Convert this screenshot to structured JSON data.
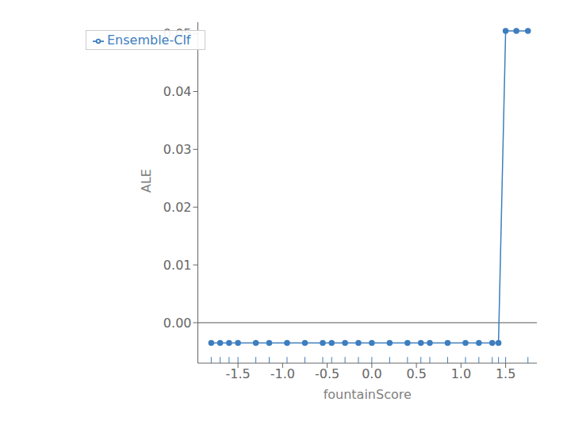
{
  "chart_data": {
    "type": "line",
    "xlabel": "fountainScore",
    "ylabel": "ALE",
    "x": [
      -1.8,
      -1.7,
      -1.6,
      -1.5,
      -1.3,
      -1.15,
      -0.95,
      -0.75,
      -0.55,
      -0.45,
      -0.3,
      -0.15,
      0.0,
      0.2,
      0.4,
      0.55,
      0.65,
      0.85,
      1.05,
      1.2,
      1.35,
      1.42,
      1.5,
      1.62,
      1.75
    ],
    "series": [
      {
        "name": "Ensemble-Clf",
        "color": "#3d7ebf",
        "marker": "circle",
        "values": [
          -0.0035,
          -0.0035,
          -0.0035,
          -0.0035,
          -0.0035,
          -0.0035,
          -0.0035,
          -0.0035,
          -0.0035,
          -0.0035,
          -0.0035,
          -0.0035,
          -0.0035,
          -0.0035,
          -0.0035,
          -0.0035,
          -0.0035,
          -0.0035,
          -0.0035,
          -0.0035,
          -0.0035,
          -0.0035,
          0.0505,
          0.0505,
          0.0505
        ]
      }
    ],
    "hline": {
      "y": 0.0,
      "color": "#555555"
    },
    "rug": {
      "color": "#3d7ebf",
      "x": [
        -1.8,
        -1.7,
        -1.6,
        -1.5,
        -1.3,
        -1.15,
        -0.95,
        -0.75,
        -0.55,
        -0.45,
        -0.3,
        -0.15,
        0.0,
        0.2,
        0.4,
        0.55,
        0.65,
        0.85,
        1.05,
        1.2,
        1.35,
        1.42,
        1.5,
        1.75
      ]
    },
    "xlim": [
      -1.95,
      1.85
    ],
    "ylim": [
      -0.007,
      0.052
    ],
    "xticks": [
      -1.5,
      {
        "value": -1.0,
        "label": "-1.0"
      },
      -0.5,
      {
        "value": 0.0,
        "label": "0.0"
      },
      0.5,
      {
        "value": 1.0,
        "label": "1.0"
      },
      1.5
    ],
    "yticks": [
      {
        "value": 0.0,
        "label": "0.00"
      },
      {
        "value": 0.01,
        "label": "0.01"
      },
      {
        "value": 0.02,
        "label": "0.02"
      },
      {
        "value": 0.03,
        "label": "0.03"
      },
      {
        "value": 0.04,
        "label": "0.04"
      },
      {
        "value": 0.05,
        "label": "0.05"
      }
    ],
    "grid": false,
    "legend": "upper left"
  }
}
